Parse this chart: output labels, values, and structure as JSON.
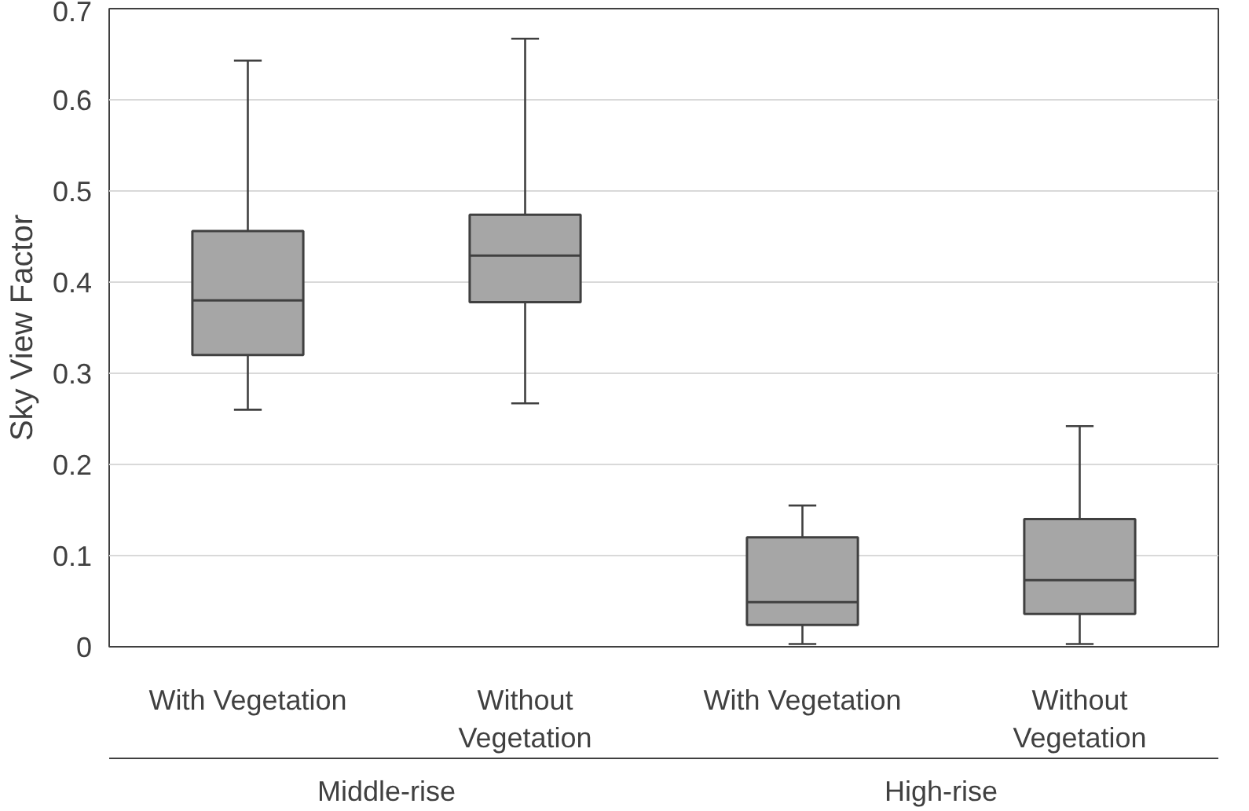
{
  "chart_data": {
    "type": "box",
    "ylabel": "Sky View Factor",
    "categories": [
      "With Vegetation",
      "Without\nVegetation",
      "With Vegetation",
      "Without\nVegetation"
    ],
    "annotations": [
      "Middle-rise",
      "High-rise"
    ],
    "color": "#a6a6a6",
    "boxes": [
      {
        "low": 0.26,
        "q1": 0.32,
        "median": 0.38,
        "q3": 0.456,
        "high": 0.643
      },
      {
        "low": 0.267,
        "q1": 0.378,
        "median": 0.429,
        "q3": 0.474,
        "high": 0.667
      },
      {
        "low": 0.003,
        "q1": 0.024,
        "median": 0.049,
        "q3": 0.12,
        "high": 0.155
      },
      {
        "low": 0.003,
        "q1": 0.036,
        "median": 0.073,
        "q3": 0.14,
        "high": 0.242
      }
    ],
    "ylim": [
      0,
      0.7
    ],
    "yticks": [
      0,
      0.1,
      0.2,
      0.3,
      0.4,
      0.5,
      0.6,
      0.7
    ],
    "grid": "y"
  }
}
